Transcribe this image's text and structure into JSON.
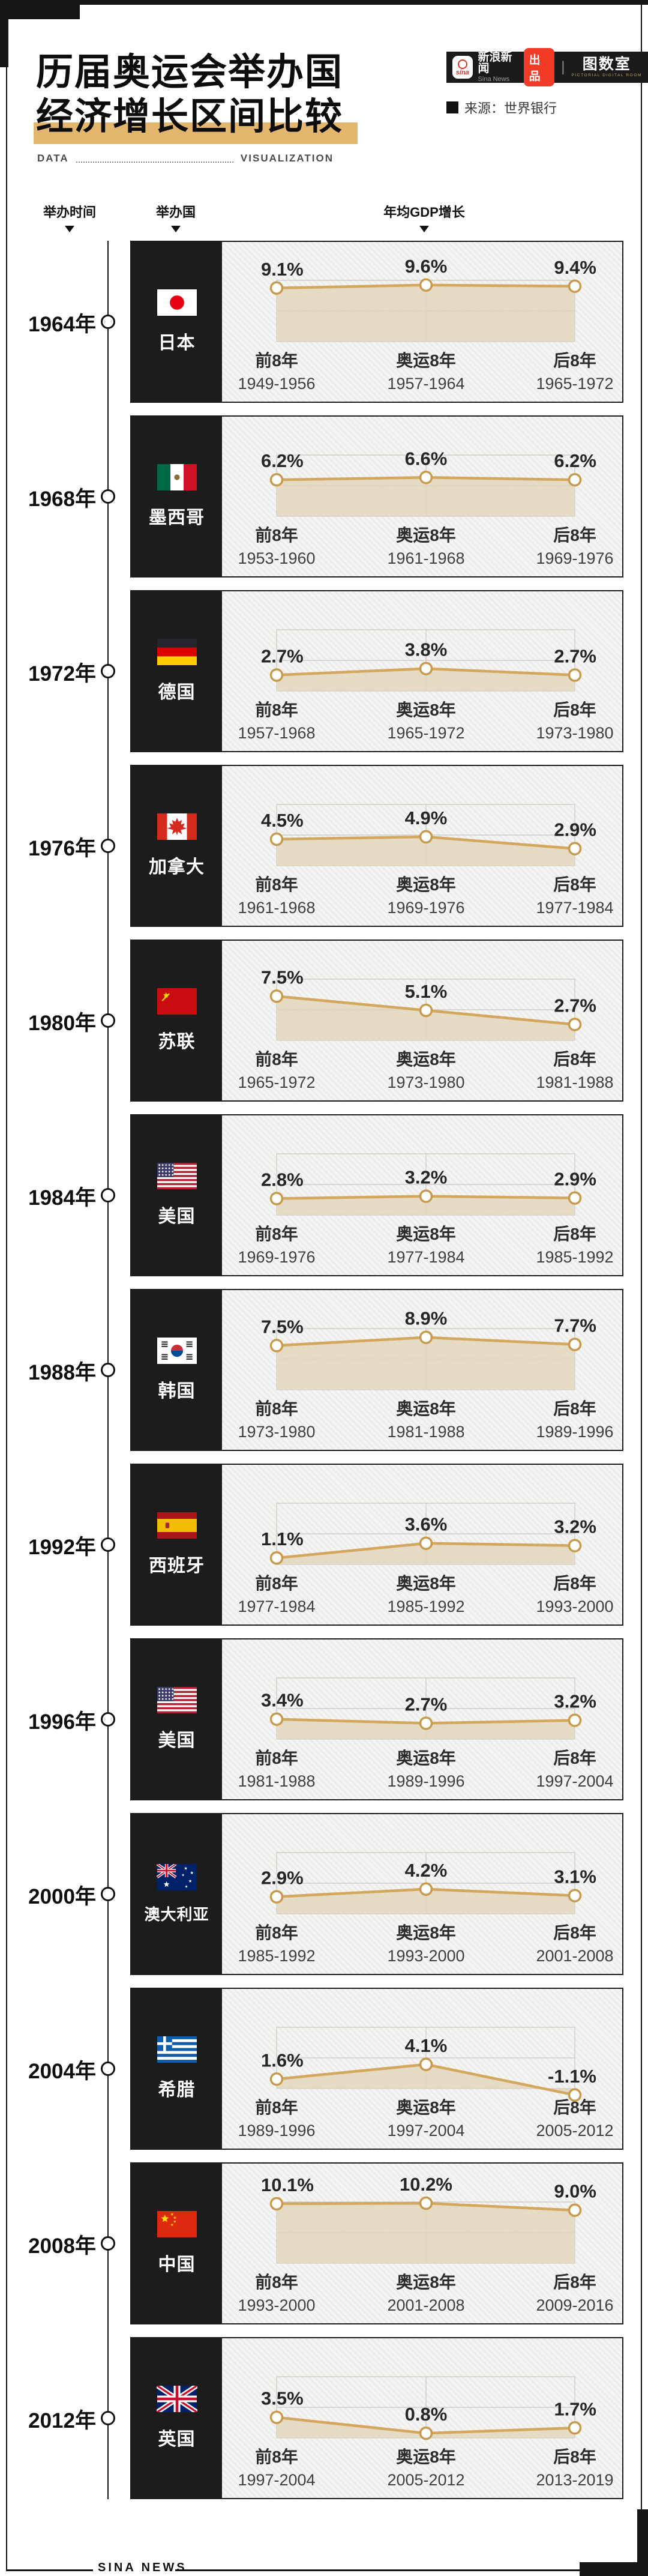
{
  "header": {
    "title_line1": "历届奥运会举办国",
    "title_line2": "经济增长区间比较",
    "data_label": "DATA",
    "viz_label": "VISUALIZATION",
    "source_label": "来源：世界银行",
    "brand": {
      "sina_icon_word": "sina",
      "name_cn": "新浪新闻",
      "name_en": "Sina News",
      "badge": "出品",
      "separator": "|",
      "studio": "图数室",
      "studio_sub": "PICTORIAL DIGITAL ROOM"
    }
  },
  "columns": {
    "time": "举办时间",
    "country": "举办国",
    "gdp": "年均GDP增长"
  },
  "footer": {
    "brand": "SINA NEWS"
  },
  "colors": {
    "accent_gold": "#d3a75e",
    "marker_stroke": "#c89a4e",
    "area_fill": "rgba(227,214,187,0.82)",
    "grid": "#c7c7c5",
    "highlight": "#e3b66d",
    "badge_red": "#f23b27",
    "panel_black": "#1c1c1c",
    "value_text": "#262626",
    "category_text": "#2c2c2c",
    "period_text": "#404040"
  },
  "chart_data": {
    "type": "line",
    "title": "历届奥运会举办国经济增长区间比较",
    "ylabel": "年均GDP增长 (%)",
    "categories": [
      "前8年",
      "奥运8年",
      "后8年"
    ],
    "ylim": [
      0,
      10.4
    ],
    "grid": "plot box with center vertical line and mid horizontal gridline, baseline at 0%",
    "legend_position": "none",
    "rows": [
      {
        "year": "1964年",
        "country": "日本",
        "flag": "jp",
        "values": [
          9.1,
          9.6,
          9.4
        ],
        "value_labels": [
          "9.1%",
          "9.6%",
          "9.4%"
        ],
        "periods": [
          "1949-1956",
          "1957-1964",
          "1965-1972"
        ]
      },
      {
        "year": "1968年",
        "country": "墨西哥",
        "flag": "mx",
        "values": [
          6.2,
          6.6,
          6.2
        ],
        "value_labels": [
          "6.2%",
          "6.6%",
          "6.2%"
        ],
        "periods": [
          "1953-1960",
          "1961-1968",
          "1969-1976"
        ]
      },
      {
        "year": "1972年",
        "country": "德国",
        "flag": "de",
        "values": [
          2.7,
          3.8,
          2.7
        ],
        "value_labels": [
          "2.7%",
          "3.8%",
          "2.7%"
        ],
        "periods": [
          "1957-1968",
          "1965-1972",
          "1973-1980"
        ]
      },
      {
        "year": "1976年",
        "country": "加拿大",
        "flag": "ca",
        "values": [
          4.5,
          4.9,
          2.9
        ],
        "value_labels": [
          "4.5%",
          "4.9%",
          "2.9%"
        ],
        "periods": [
          "1961-1968",
          "1969-1976",
          "1977-1984"
        ]
      },
      {
        "year": "1980年",
        "country": "苏联",
        "flag": "su",
        "values": [
          7.5,
          5.1,
          2.7
        ],
        "value_labels": [
          "7.5%",
          "5.1%",
          "2.7%"
        ],
        "periods": [
          "1965-1972",
          "1973-1980",
          "1981-1988"
        ]
      },
      {
        "year": "1984年",
        "country": "美国",
        "flag": "us",
        "values": [
          2.8,
          3.2,
          2.9
        ],
        "value_labels": [
          "2.8%",
          "3.2%",
          "2.9%"
        ],
        "periods": [
          "1969-1976",
          "1977-1984",
          "1985-1992"
        ]
      },
      {
        "year": "1988年",
        "country": "韩国",
        "flag": "kr",
        "values": [
          7.5,
          8.9,
          7.7
        ],
        "value_labels": [
          "7.5%",
          "8.9%",
          "7.7%"
        ],
        "periods": [
          "1973-1980",
          "1981-1988",
          "1989-1996"
        ]
      },
      {
        "year": "1992年",
        "country": "西班牙",
        "flag": "es",
        "values": [
          1.1,
          3.6,
          3.2
        ],
        "value_labels": [
          "1.1%",
          "3.6%",
          "3.2%"
        ],
        "periods": [
          "1977-1984",
          "1985-1992",
          "1993-2000"
        ]
      },
      {
        "year": "1996年",
        "country": "美国",
        "flag": "us",
        "values": [
          3.4,
          2.7,
          3.2
        ],
        "value_labels": [
          "3.4%",
          "2.7%",
          "3.2%"
        ],
        "periods": [
          "1981-1988",
          "1989-1996",
          "1997-2004"
        ]
      },
      {
        "year": "2000年",
        "country": "澳大利亚",
        "flag": "au",
        "values": [
          2.9,
          4.2,
          3.1
        ],
        "value_labels": [
          "2.9%",
          "4.2%",
          "3.1%"
        ],
        "periods": [
          "1985-1992",
          "1993-2000",
          "2001-2008"
        ]
      },
      {
        "year": "2004年",
        "country": "希腊",
        "flag": "gr",
        "values": [
          1.6,
          4.1,
          -1.1
        ],
        "value_labels": [
          "1.6%",
          "4.1%",
          "-1.1%"
        ],
        "periods": [
          "1989-1996",
          "1997-2004",
          "2005-2012"
        ]
      },
      {
        "year": "2008年",
        "country": "中国",
        "flag": "cn",
        "values": [
          10.1,
          10.2,
          9.0
        ],
        "value_labels": [
          "10.1%",
          "10.2%",
          "9.0%"
        ],
        "periods": [
          "1993-2000",
          "2001-2008",
          "2009-2016"
        ]
      },
      {
        "year": "2012年",
        "country": "英国",
        "flag": "gb",
        "values": [
          3.5,
          0.8,
          1.7
        ],
        "value_labels": [
          "3.5%",
          "0.8%",
          "1.7%"
        ],
        "periods": [
          "1997-2004",
          "2005-2012",
          "2013-2019"
        ]
      }
    ]
  }
}
